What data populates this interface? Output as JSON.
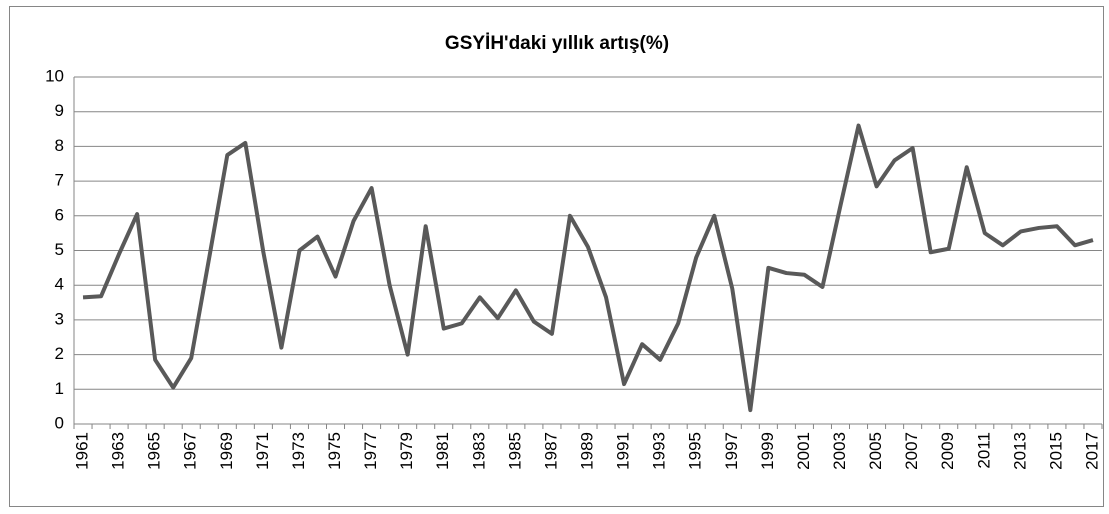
{
  "chart_data": {
    "type": "line",
    "title": "GSYİH'daki yıllık artış(%)",
    "categories": [
      "1961",
      null,
      "1963",
      null,
      "1965",
      null,
      "1967",
      null,
      "1969",
      null,
      "1971",
      null,
      "1973",
      null,
      "1975",
      null,
      "1977",
      null,
      "1979",
      null,
      "1981",
      null,
      "1983",
      null,
      "1985",
      null,
      "1987",
      null,
      "1989",
      null,
      "1991",
      null,
      "1993",
      null,
      "1995",
      null,
      "1997",
      null,
      "1999",
      null,
      "2001",
      null,
      "2003",
      null,
      "2005",
      null,
      "2007",
      null,
      "2009",
      null,
      "2011",
      null,
      "2013",
      null,
      "2015",
      null,
      "2017"
    ],
    "series": [
      {
        "color": "#595959",
        "values": [
          3.65,
          3.68,
          4.9,
          6.05,
          1.85,
          1.05,
          1.9,
          4.8,
          7.75,
          8.1,
          4.95,
          2.2,
          5.0,
          5.4,
          4.25,
          5.85,
          6.8,
          4.0,
          2.0,
          5.7,
          2.75,
          2.9,
          3.65,
          3.05,
          3.85,
          2.95,
          2.6,
          6.0,
          5.1,
          3.65,
          1.15,
          2.3,
          1.85,
          2.9,
          4.8,
          6.0,
          3.9,
          0.4,
          4.5,
          4.35,
          4.3,
          3.95,
          6.3,
          8.6,
          6.85,
          7.6,
          7.95,
          4.95,
          5.05,
          7.4,
          5.5,
          5.15,
          5.55,
          5.65,
          5.7,
          5.15,
          5.3
        ]
      }
    ],
    "ylim": [
      0,
      10
    ],
    "yticks": [
      0,
      1,
      2,
      3,
      4,
      5,
      6,
      7,
      8,
      9,
      10
    ],
    "grid": true
  }
}
